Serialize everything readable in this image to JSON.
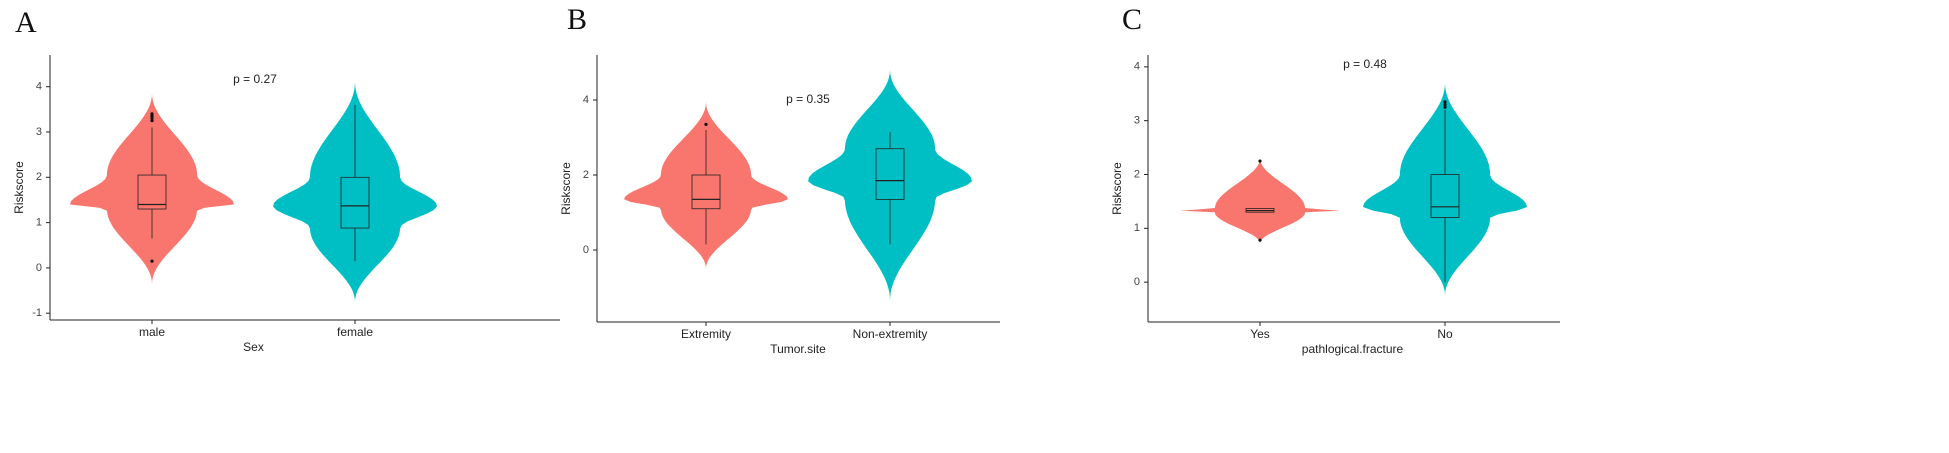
{
  "chart_data": [
    {
      "type": "violin",
      "panel_label": "A",
      "annotation": "p = 0.27",
      "x_label": "Sex",
      "y_label": "Riskscore",
      "categories": [
        "male",
        "female"
      ],
      "groups": [
        {
          "color": "#F8766D",
          "range": [
            -0.35,
            3.85
          ],
          "stats": [
            0.65,
            1.3,
            1.4,
            2.05,
            3.1
          ],
          "outliers": [
            0.15,
            3.25,
            3.3,
            3.35,
            3.4
          ]
        },
        {
          "color": "#00BFC4",
          "range": [
            -0.75,
            4.1
          ],
          "stats": [
            0.15,
            0.88,
            1.37,
            2.0,
            3.6
          ],
          "outliers": []
        }
      ],
      "ylim": [
        -1.15,
        4.7
      ],
      "yticks": [
        -1,
        0,
        1,
        2,
        3,
        4
      ]
    },
    {
      "type": "violin",
      "panel_label": "B",
      "annotation": "p = 0.35",
      "x_label": "Tumor.site",
      "y_label": "Riskscore",
      "categories": [
        "Extremity",
        "Non-extremity"
      ],
      "groups": [
        {
          "color": "#F8766D",
          "range": [
            -0.5,
            3.95
          ],
          "stats": [
            0.15,
            1.1,
            1.35,
            2.0,
            3.2
          ],
          "outliers": [
            3.35
          ]
        },
        {
          "color": "#00BFC4",
          "range": [
            -1.35,
            4.8
          ],
          "stats": [
            0.15,
            1.35,
            1.85,
            2.7,
            3.15
          ],
          "outliers": []
        }
      ],
      "ylim": [
        -1.92,
        5.2
      ],
      "yticks": [
        0,
        2,
        4
      ]
    },
    {
      "type": "violin",
      "panel_label": "C",
      "annotation": "p = 0.48",
      "x_label": "pathlogical.fracture",
      "y_label": "Riskscore",
      "categories": [
        "Yes",
        "No"
      ],
      "groups": [
        {
          "color": "#F8766D",
          "range": [
            0.72,
            2.3
          ],
          "stats": [
            1.3,
            1.3,
            1.33,
            1.37,
            1.37
          ],
          "outliers": [
            0.78,
            2.25
          ]
        },
        {
          "color": "#00BFC4",
          "range": [
            -0.25,
            3.7
          ],
          "stats": [
            0.0,
            1.2,
            1.4,
            2.0,
            3.2
          ],
          "outliers": [
            3.25,
            3.3,
            3.35
          ]
        }
      ],
      "ylim": [
        -0.74,
        4.22
      ],
      "yticks": [
        0,
        1,
        2,
        3,
        4
      ]
    }
  ]
}
